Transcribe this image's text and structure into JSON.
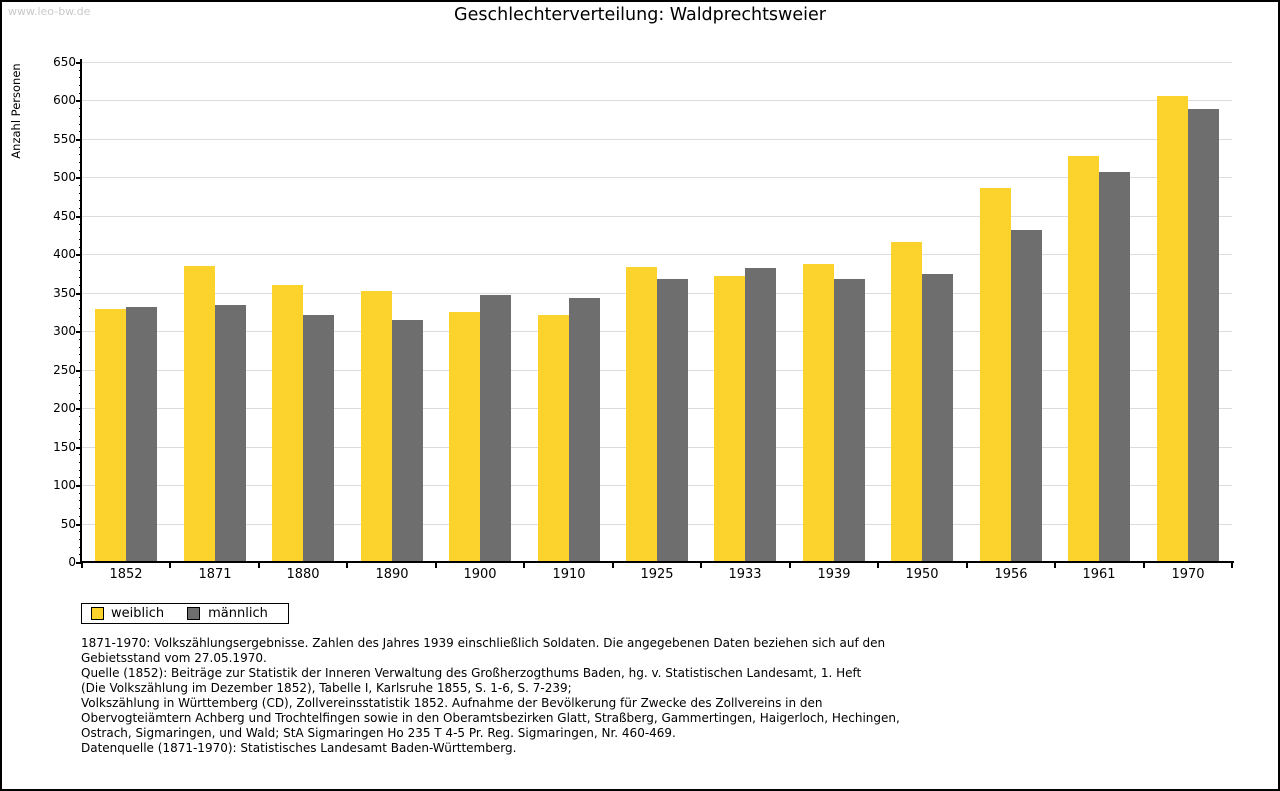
{
  "watermark": "www.leo-bw.de",
  "title": "Geschlechterverteilung: Waldprechtsweier",
  "chart_data": {
    "type": "bar",
    "title": "Geschlechterverteilung: Waldprechtsweier",
    "xlabel": "",
    "ylabel": "Anzahl Personen",
    "ylim": [
      0,
      650
    ],
    "ytick_step": 50,
    "ytick_minor_step": 10,
    "grid": true,
    "legend_position": "bottom-left",
    "gridline_color": "#dcdcdc",
    "categories": [
      "1852",
      "1871",
      "1880",
      "1890",
      "1900",
      "1910",
      "1925",
      "1933",
      "1939",
      "1950",
      "1956",
      "1961",
      "1970"
    ],
    "series": [
      {
        "name": "weiblich",
        "color": "#FCD32C",
        "values": [
          329,
          385,
          360,
          352,
          325,
          321,
          384,
          372,
          388,
          416,
          486,
          528,
          606
        ]
      },
      {
        "name": "männlich",
        "color": "#6E6E6E",
        "values": [
          331,
          334,
          321,
          315,
          347,
          343,
          368,
          382,
          368,
          374,
          432,
          507,
          589
        ]
      }
    ]
  },
  "footnotes": [
    "1871-1970: Volkszählungsergebnisse. Zahlen des Jahres 1939 einschließlich Soldaten. Die angegebenen Daten beziehen sich auf den",
    "Gebietsstand vom 27.05.1970.",
    "Quelle (1852): Beiträge zur Statistik der Inneren Verwaltung des Großherzogthums Baden, hg. v. Statistischen Landesamt, 1. Heft",
    "(Die Volkszählung im Dezember 1852), Tabelle I, Karlsruhe 1855, S. 1-6, S. 7-239;",
    "Volkszählung in Württemberg (CD), Zollvereinsstatistik 1852. Aufnahme der Bevölkerung für Zwecke des Zollvereins in den",
    "Obervogteiämtern Achberg und Trochtelfingen sowie in den Oberamtsbezirken Glatt, Straßberg, Gammertingen, Haigerloch, Hechingen,",
    "Ostrach, Sigmaringen, und Wald; StA Sigmaringen Ho 235 T 4-5 Pr. Reg. Sigmaringen, Nr. 460-469."
  ],
  "datasource": "Datenquelle (1871-1970): Statistisches Landesamt Baden-Württemberg."
}
